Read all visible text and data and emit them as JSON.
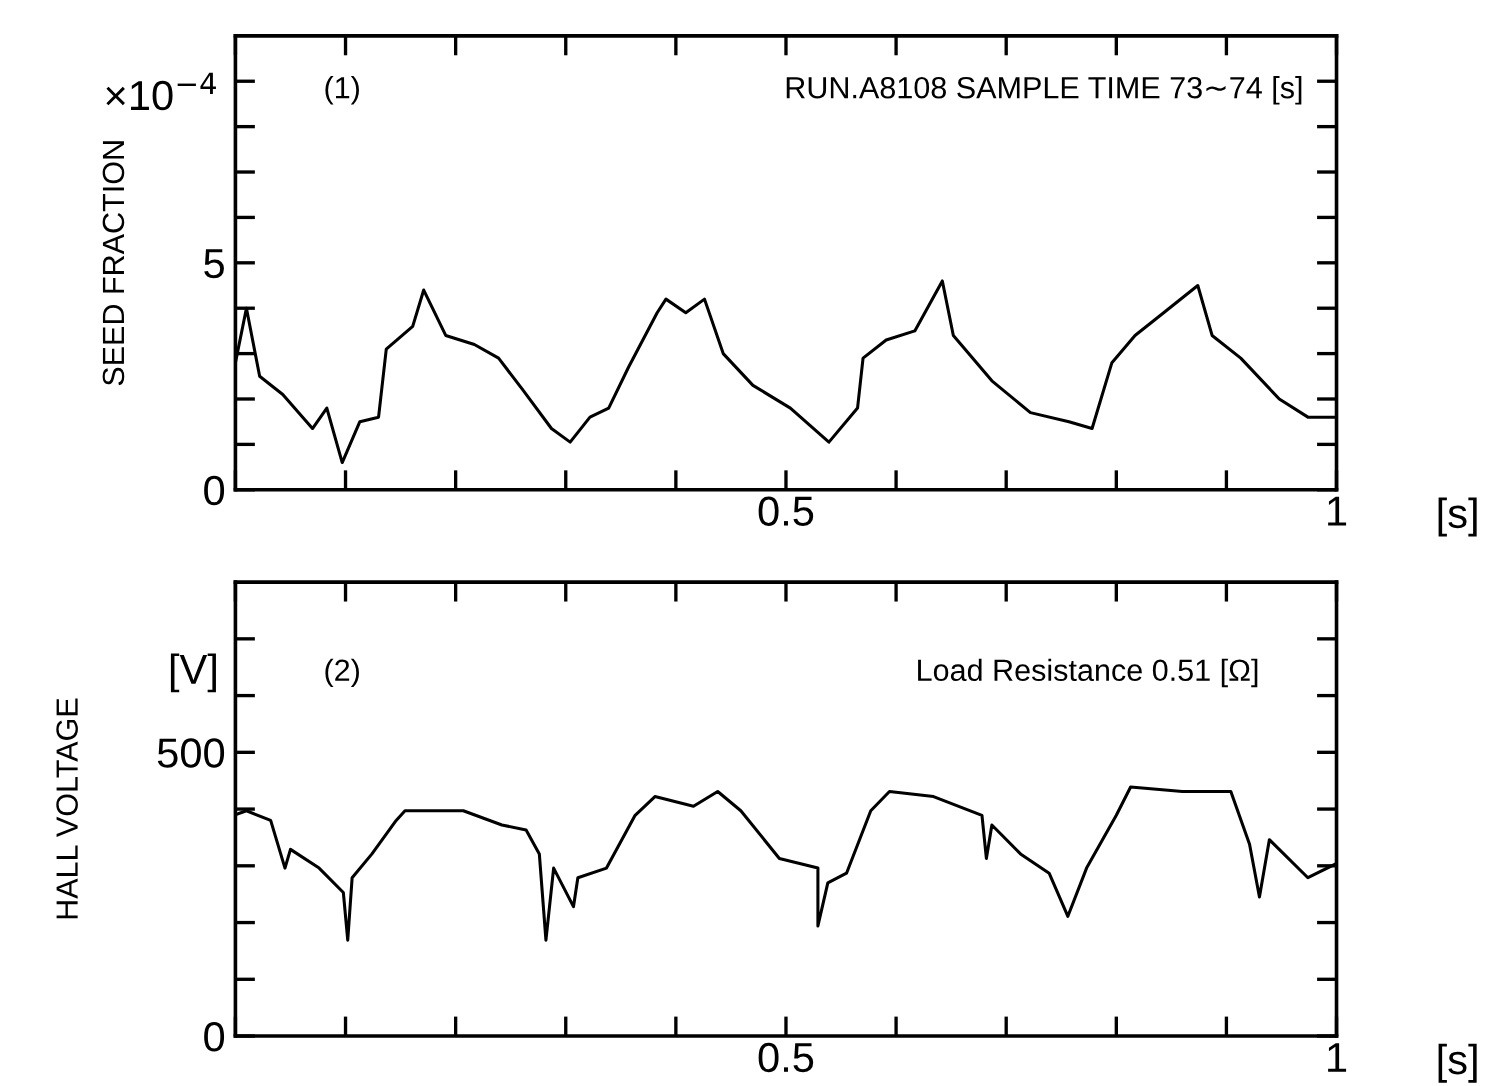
{
  "chart_data": [
    {
      "type": "line",
      "ylabel": "SEED FRACTION",
      "annotations": [
        "(1)",
        "RUN.A8108 SAMPLE TIME 73∼74 [s]",
        "×10$^{−4}$",
        "[s]"
      ],
      "x": [
        0,
        0.01,
        0.022,
        0.043,
        0.07,
        0.083,
        0.097,
        0.113,
        0.13,
        0.137,
        0.161,
        0.171,
        0.191,
        0.217,
        0.239,
        0.261,
        0.287,
        0.304,
        0.322,
        0.339,
        0.357,
        0.383,
        0.391,
        0.409,
        0.426,
        0.443,
        0.47,
        0.504,
        0.539,
        0.565,
        0.57,
        0.591,
        0.617,
        0.642,
        0.652,
        0.687,
        0.722,
        0.757,
        0.778,
        0.796,
        0.817,
        0.843,
        0.874,
        0.887,
        0.913,
        0.948,
        0.974,
        1.0
      ],
      "series": [
        {
          "color": "#000000",
          "values": [
            2.8,
            4.0,
            2.5,
            2.1,
            1.35,
            1.8,
            0.6,
            1.5,
            1.6,
            3.1,
            3.6,
            4.4,
            3.4,
            3.2,
            2.9,
            2.2,
            1.35,
            1.05,
            1.6,
            1.8,
            2.7,
            3.9,
            4.2,
            3.9,
            4.2,
            3.0,
            2.3,
            1.8,
            1.05,
            1.8,
            2.9,
            3.3,
            3.5,
            4.6,
            3.4,
            2.4,
            1.7,
            1.5,
            1.35,
            2.8,
            3.4,
            3.9,
            4.5,
            3.4,
            2.9,
            2.0,
            1.6,
            1.6
          ]
        }
      ],
      "xlim": [
        0,
        1
      ],
      "ylim": [
        0,
        10
      ],
      "xticks": [
        {
          "value": 0,
          "label": null
        },
        {
          "value": 0.1,
          "label": null
        },
        {
          "value": 0.2,
          "label": null
        },
        {
          "value": 0.3,
          "label": null
        },
        {
          "value": 0.4,
          "label": null
        },
        0.5,
        {
          "value": 0.6,
          "label": null
        },
        {
          "value": 0.7,
          "label": null
        },
        {
          "value": 0.8,
          "label": null
        },
        {
          "value": 0.9,
          "label": null
        },
        1
      ],
      "yticks": [
        0,
        {
          "value": 1,
          "label": null
        },
        {
          "value": 2,
          "label": null
        },
        {
          "value": 3,
          "label": null
        },
        {
          "value": 4,
          "label": null
        },
        5,
        {
          "value": 6,
          "label": null
        },
        {
          "value": 7,
          "label": null
        },
        {
          "value": 8,
          "label": null
        },
        {
          "value": 9,
          "label": null
        }
      ],
      "line_style": "solid",
      "marker": "none",
      "grid": false,
      "legend": false
    },
    {
      "type": "line",
      "ylabel": "HALL VOLTAGE",
      "annotations": [
        "[V]",
        "(2)",
        "Load Resistance 0.51 [Ω]",
        "[s]"
      ],
      "x": [
        0,
        0.01,
        0.032,
        0.045,
        0.05,
        0.076,
        0.098,
        0.102,
        0.106,
        0.124,
        0.146,
        0.154,
        0.207,
        0.242,
        0.264,
        0.276,
        0.282,
        0.289,
        0.307,
        0.311,
        0.337,
        0.363,
        0.381,
        0.416,
        0.438,
        0.459,
        0.494,
        0.529,
        0.529,
        0.538,
        0.555,
        0.577,
        0.594,
        0.634,
        0.678,
        0.682,
        0.687,
        0.713,
        0.739,
        0.756,
        0.773,
        0.8,
        0.813,
        0.86,
        0.904,
        0.921,
        0.93,
        0.939,
        0.974,
        1.0
      ],
      "series": [
        {
          "color": "#000000",
          "values": [
            390,
            397,
            380,
            296,
            329,
            296,
            253,
            169,
            279,
            321,
            380,
            397,
            397,
            372,
            363,
            321,
            169,
            296,
            228,
            279,
            296,
            389,
            422,
            405,
            431,
            397,
            313,
            296,
            194,
            270,
            287,
            397,
            431,
            422,
            389,
            313,
            372,
            321,
            287,
            211,
            296,
            389,
            439,
            431,
            431,
            338,
            245,
            346,
            279,
            304
          ]
        }
      ],
      "xlim": [
        0,
        1
      ],
      "ylim": [
        0,
        800
      ],
      "xticks": [
        {
          "value": 0,
          "label": null
        },
        {
          "value": 0.1,
          "label": null
        },
        {
          "value": 0.2,
          "label": null
        },
        {
          "value": 0.3,
          "label": null
        },
        {
          "value": 0.4,
          "label": null
        },
        0.5,
        {
          "value": 0.6,
          "label": null
        },
        {
          "value": 0.7,
          "label": null
        },
        {
          "value": 0.8,
          "label": null
        },
        {
          "value": 0.9,
          "label": null
        },
        1
      ],
      "yticks": [
        0,
        {
          "value": 100,
          "label": null
        },
        {
          "value": 200,
          "label": null
        },
        {
          "value": 300,
          "label": null
        },
        {
          "value": 400,
          "label": null
        },
        500,
        {
          "value": 600,
          "label": null
        },
        {
          "value": 700,
          "label": null
        }
      ],
      "line_style": "solid",
      "marker": "none",
      "grid": false,
      "legend": false
    }
  ]
}
